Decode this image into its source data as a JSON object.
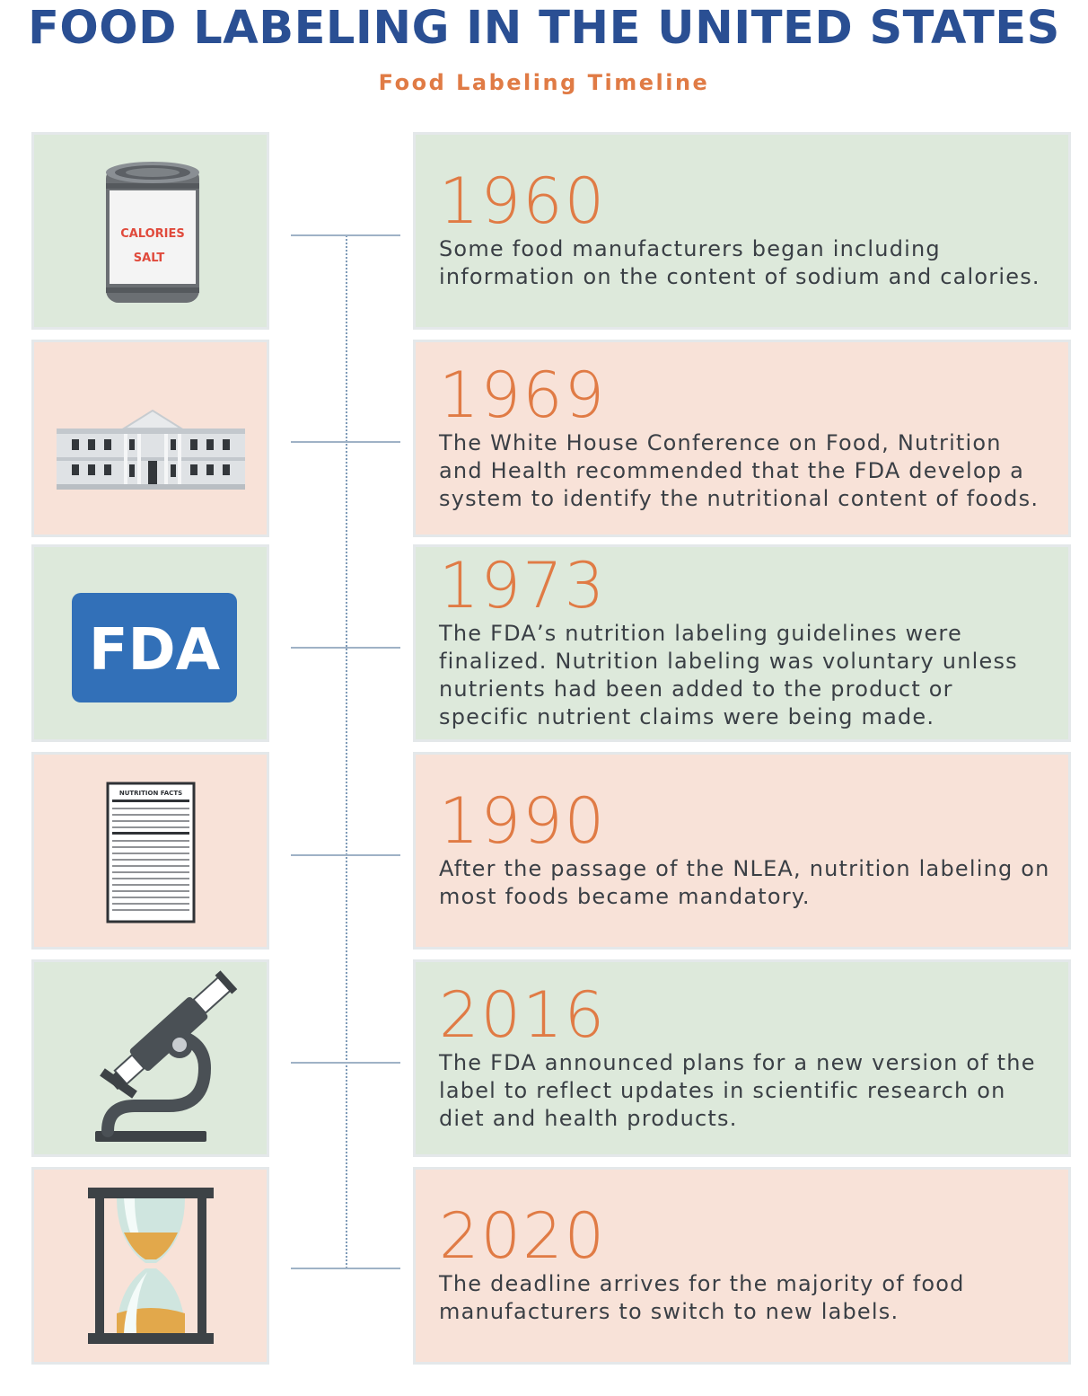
{
  "header": {
    "title": "FOOD LABELING IN THE UNITED STATES",
    "subtitle": "Food Labeling Timeline"
  },
  "events": [
    {
      "year": "1960",
      "text": "Some food manufacturers began including information on the content of sodium and calories.",
      "icon": "food-can-icon",
      "color": "green"
    },
    {
      "year": "1969",
      "text": "The White House Conference on Food, Nutrition and Health recommended that the FDA develop a system to identify the nutritional content of foods.",
      "icon": "white-house-icon",
      "color": "pink"
    },
    {
      "year": "1973",
      "text": "The FDA’s nutrition labeling guidelines were finalized. Nutrition labeling was voluntary unless nutrients had been added to the product or specific nutrient claims were being made.",
      "icon": "fda-logo-icon",
      "color": "green"
    },
    {
      "year": "1990",
      "text": "After the passage of the NLEA, nutrition labeling on most foods became mandatory.",
      "icon": "nutrition-facts-label-icon",
      "color": "pink"
    },
    {
      "year": "2016",
      "text": "The FDA announced plans for a new version of the label to reflect updates in scientific research on diet and health products.",
      "icon": "microscope-icon",
      "color": "green"
    },
    {
      "year": "2020",
      "text": "The deadline arrives for the majority of food manufacturers to switch to new labels.",
      "icon": "hourglass-icon",
      "color": "pink"
    }
  ],
  "icon_labels": {
    "can_line1": "CALORIES",
    "can_line2": "SALT",
    "fda": "FDA",
    "nutrition_facts": "NUTRITION FACTS"
  },
  "colors": {
    "title": "#2a4f93",
    "accent": "#e07b45",
    "green_panel": "#dde9db",
    "pink_panel": "#f8e2d8",
    "fda_blue": "#3270b8",
    "timeline": "#9fb2c6"
  }
}
